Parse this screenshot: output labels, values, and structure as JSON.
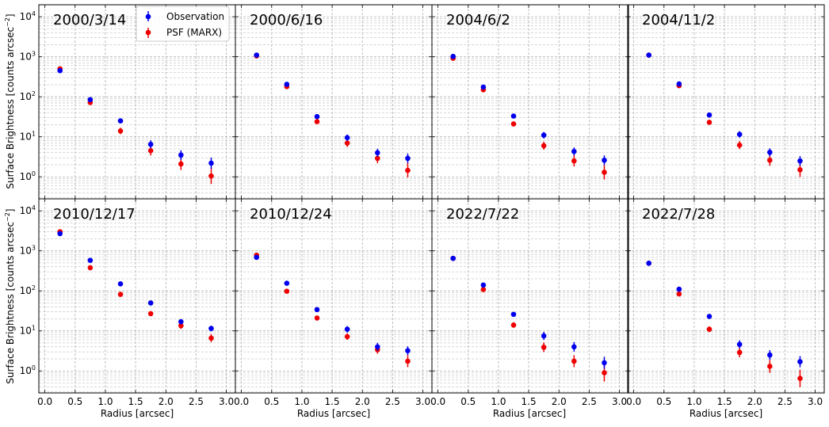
{
  "figure": {
    "ylabel_main": "Surface Brightness [counts arcsec",
    "ylabel_exp": "−2",
    "ylabel_close": "]",
    "xlabel": "Radius [arcsec]"
  },
  "legend": {
    "observation": "Observation",
    "psf": "PSF (MARX)"
  },
  "colors": {
    "observation": "#0000ee",
    "psf": "#ee0000",
    "grid": "#b0b0b0"
  },
  "chart_data": {
    "type": "scatter",
    "xlim": [
      -0.1,
      3.15
    ],
    "ylim_log10": [
      -0.55,
      4.3
    ],
    "y_scale": "log",
    "grid": true,
    "legend_placement": "first panel, top",
    "x_ticks": [
      "0.0",
      "0.5",
      "1.0",
      "1.5",
      "2.0",
      "2.5",
      "3.0"
    ],
    "y_ticks": [
      {
        "base": "10",
        "exp": "0",
        "v": 1
      },
      {
        "base": "10",
        "exp": "1",
        "v": 10
      },
      {
        "base": "10",
        "exp": "2",
        "v": 100
      },
      {
        "base": "10",
        "exp": "3",
        "v": 1000
      },
      {
        "base": "10",
        "exp": "4",
        "v": 10000
      }
    ],
    "x": [
      0.25,
      0.75,
      1.25,
      1.75,
      2.25,
      2.75
    ],
    "panels": [
      {
        "title": "2000/3/14",
        "obs": [
          450,
          85,
          25,
          6.5,
          3.5,
          2.2
        ],
        "obs_err": [
          0.03,
          0.05,
          0.06,
          0.1,
          0.12,
          0.14
        ],
        "psf": [
          500,
          72,
          14,
          4.5,
          2.1,
          1.05
        ],
        "psf_err": [
          0.03,
          0.06,
          0.08,
          0.12,
          0.15,
          0.2
        ]
      },
      {
        "title": "2000/6/16",
        "obs": [
          1100,
          205,
          32,
          9.5,
          4.0,
          2.9
        ],
        "obs_err": [
          0.03,
          0.04,
          0.05,
          0.08,
          0.1,
          0.12
        ],
        "psf": [
          1050,
          180,
          24,
          7.0,
          2.9,
          1.45
        ],
        "psf_err": [
          0.03,
          0.05,
          0.06,
          0.1,
          0.12,
          0.18
        ]
      },
      {
        "title": "2004/6/2",
        "obs": [
          1020,
          175,
          33,
          11,
          4.3,
          2.6
        ],
        "obs_err": [
          0.03,
          0.04,
          0.05,
          0.08,
          0.1,
          0.12
        ],
        "psf": [
          920,
          150,
          21,
          6.0,
          2.5,
          1.3
        ],
        "psf_err": [
          0.03,
          0.05,
          0.06,
          0.1,
          0.14,
          0.18
        ]
      },
      {
        "title": "2004/11/2",
        "obs": [
          1100,
          210,
          35,
          11.5,
          4.1,
          2.5
        ],
        "obs_err": [
          0.03,
          0.04,
          0.05,
          0.08,
          0.1,
          0.12
        ],
        "psf": [
          1100,
          190,
          23,
          6.2,
          2.6,
          1.5
        ],
        "psf_err": [
          0.03,
          0.05,
          0.06,
          0.1,
          0.14,
          0.18
        ]
      },
      {
        "title": "2010/12/17",
        "obs": [
          2700,
          580,
          150,
          50,
          17,
          11.5
        ],
        "obs_err": [
          0.02,
          0.03,
          0.04,
          0.05,
          0.06,
          0.07
        ],
        "psf": [
          3000,
          380,
          82,
          27,
          13.5,
          6.6
        ],
        "psf_err": [
          0.02,
          0.03,
          0.05,
          0.06,
          0.08,
          0.1
        ]
      },
      {
        "title": "2010/12/24",
        "obs": [
          690,
          155,
          34,
          11,
          4.0,
          3.2
        ],
        "obs_err": [
          0.03,
          0.04,
          0.05,
          0.08,
          0.1,
          0.11
        ],
        "psf": [
          780,
          98,
          21,
          7.2,
          3.4,
          1.75
        ],
        "psf_err": [
          0.03,
          0.05,
          0.06,
          0.08,
          0.1,
          0.15
        ]
      },
      {
        "title": "2022/7/22",
        "obs": [
          650,
          140,
          26,
          7.5,
          4.0,
          1.6
        ],
        "obs_err": [
          0.03,
          0.04,
          0.05,
          0.1,
          0.12,
          0.15
        ],
        "psf": [
          650,
          108,
          14,
          3.9,
          1.75,
          0.9
        ],
        "psf_err": [
          0.03,
          0.05,
          0.07,
          0.12,
          0.15,
          0.22
        ]
      },
      {
        "title": "2022/7/28",
        "obs": [
          490,
          110,
          23,
          4.6,
          2.5,
          1.7
        ],
        "obs_err": [
          0.03,
          0.05,
          0.06,
          0.1,
          0.12,
          0.14
        ],
        "psf": [
          490,
          84,
          11,
          2.9,
          1.3,
          0.65
        ],
        "psf_err": [
          0.03,
          0.05,
          0.07,
          0.12,
          0.16,
          0.22
        ]
      }
    ]
  }
}
